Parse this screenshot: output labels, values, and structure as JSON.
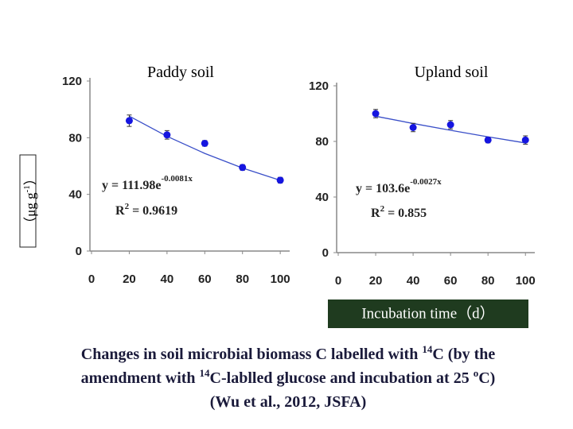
{
  "chart_data": [
    {
      "type": "scatter",
      "title": "Paddy soil",
      "x": [
        20,
        40,
        60,
        80,
        100
      ],
      "values": [
        92,
        82,
        76,
        59,
        50
      ],
      "errors": [
        4,
        3,
        2,
        2,
        2
      ],
      "color": "#1515e0",
      "fit_values": [
        95.2,
        81.0,
        68.9,
        58.6,
        49.9
      ],
      "fit_color": "#3a4fc8",
      "equation": [
        "y = 111.98e",
        "-0.0081x"
      ],
      "r2": [
        "R",
        "2",
        " = 0.9619"
      ],
      "xlim": [
        0,
        105
      ],
      "ylim": [
        0,
        120
      ],
      "xticks": [
        0,
        20,
        40,
        60,
        80,
        100
      ],
      "yticks": [
        0,
        40,
        80,
        120
      ]
    },
    {
      "type": "scatter",
      "title": "Upland soil",
      "x": [
        20,
        40,
        60,
        80,
        100
      ],
      "values": [
        100,
        90,
        92,
        81,
        81
      ],
      "errors": [
        3,
        3,
        3,
        2,
        3
      ],
      "color": "#1515e0",
      "fit_values": [
        98.1,
        92.9,
        88.0,
        83.3,
        78.9
      ],
      "fit_color": "#3a4fc8",
      "equation": [
        "y = 103.6e",
        "-0.0027x"
      ],
      "r2": [
        "R",
        "2",
        " = 0.855"
      ],
      "xlim": [
        0,
        105
      ],
      "ylim": [
        0,
        120
      ],
      "xticks": [
        0,
        20,
        40,
        60,
        80,
        100
      ],
      "yticks": [
        0,
        40,
        80,
        120
      ]
    }
  ],
  "x_axis_label": "Incubation time（d）",
  "y_axis_label": [
    "（μg g",
    "-1",
    "）"
  ],
  "caption": [
    [
      "Changes in soil microbial biomass C labelled with ",
      "14",
      "C (by the"
    ],
    [
      "amendment with ",
      "14",
      "C-lablled glucose and incubation at 25 ",
      "o",
      "C)"
    ],
    [
      "(Wu et al., 2012, JSFA)"
    ]
  ]
}
